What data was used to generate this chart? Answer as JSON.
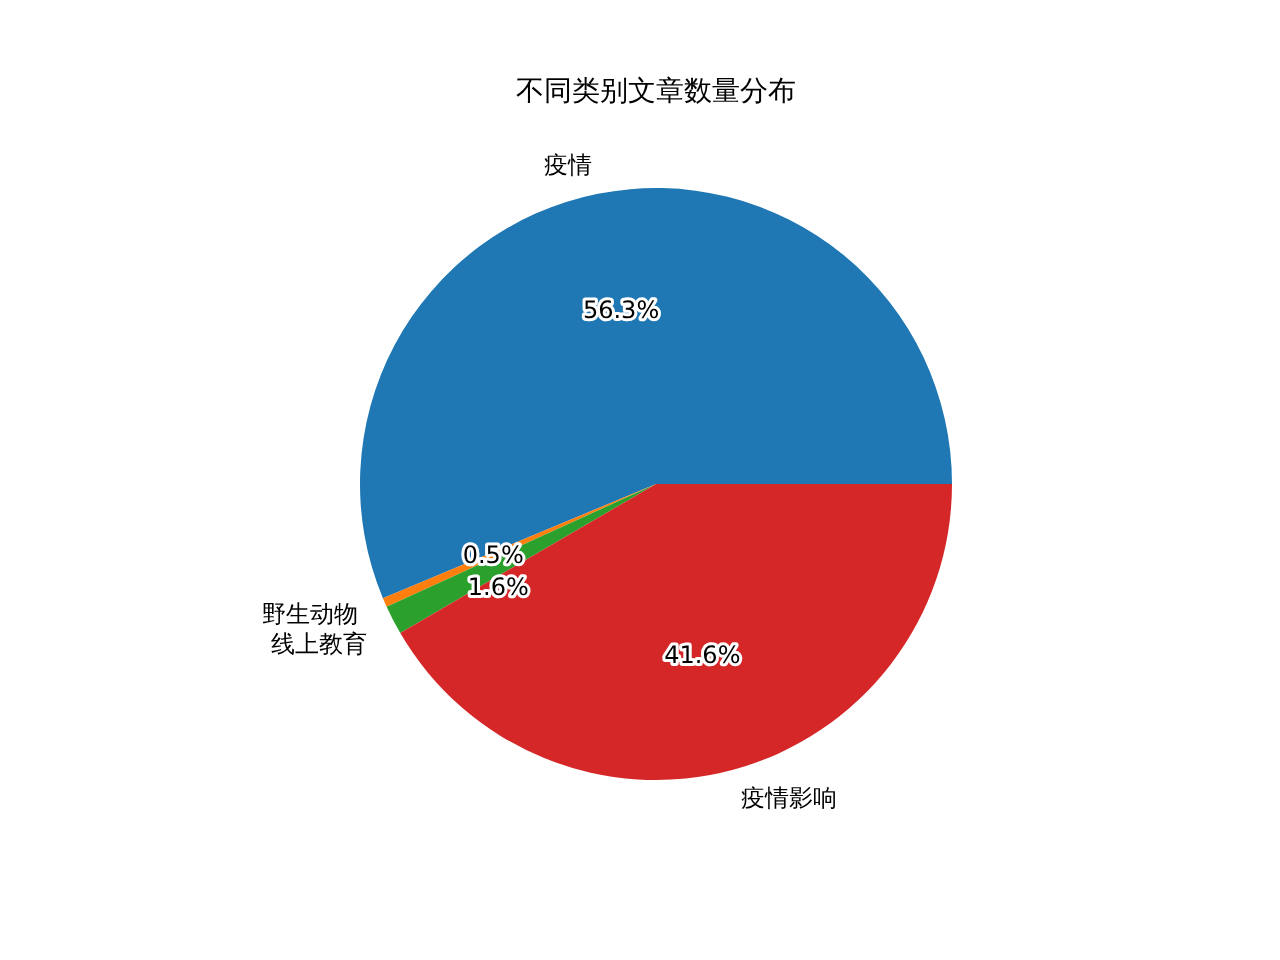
{
  "chart_data": {
    "type": "pie",
    "title": "不同类别文章数量分布",
    "categories": [
      "疫情",
      "野生动物",
      "线上教育",
      "疫情影响"
    ],
    "values": [
      56.3,
      0.5,
      1.6,
      41.6
    ],
    "colors": [
      "#1f77b4",
      "#ff7f0e",
      "#2ca02c",
      "#d62728"
    ],
    "value_labels": [
      "56.3%",
      "0.5%",
      "1.6%",
      "41.6%"
    ]
  }
}
